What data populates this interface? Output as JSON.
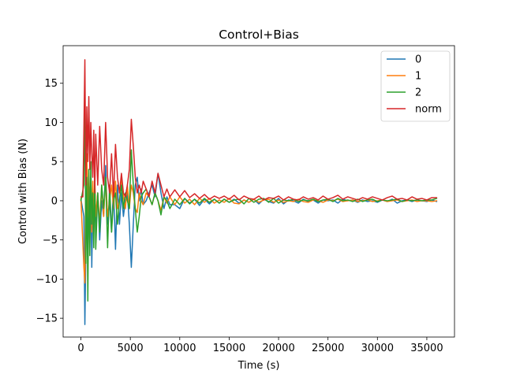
{
  "chart_data": {
    "type": "line",
    "title": "Control+Bias",
    "xlabel": "Time (s)",
    "ylabel": "Control with Bias (N)",
    "xlim": [
      -1800,
      37800
    ],
    "ylim": [
      -17.4,
      19.8
    ],
    "xticks": [
      0,
      5000,
      10000,
      15000,
      20000,
      25000,
      30000,
      35000
    ],
    "xtick_labels": [
      "0",
      "5000",
      "10000",
      "15000",
      "20000",
      "25000",
      "30000",
      "35000"
    ],
    "yticks": [
      -15,
      -10,
      -5,
      0,
      5,
      10,
      15
    ],
    "ytick_labels": [
      "−15",
      "−10",
      "−5",
      "0",
      "5",
      "10",
      "15"
    ],
    "grid": false,
    "legend_position": "top-right",
    "series": [
      {
        "name": "0",
        "color": "#1f77b4",
        "x": [
          0,
          300,
          400,
          500,
          600,
          700,
          800,
          900,
          1000,
          1100,
          1200,
          1300,
          1400,
          1500,
          1700,
          1900,
          2100,
          2300,
          2500,
          2700,
          2900,
          3100,
          3300,
          3500,
          3700,
          3900,
          4100,
          4300,
          4500,
          4700,
          4900,
          5100,
          5300,
          5500,
          5700,
          5900,
          6100,
          6300,
          6600,
          6900,
          7200,
          7500,
          7800,
          8100,
          8400,
          8700,
          9000,
          9500,
          10000,
          10500,
          11000,
          11500,
          12000,
          12500,
          13000,
          13500,
          14000,
          14500,
          15000,
          15500,
          16000,
          16500,
          17000,
          17500,
          18000,
          18500,
          19000,
          19500,
          20000,
          20500,
          21000,
          21500,
          22000,
          22500,
          23000,
          23500,
          24000,
          24500,
          25000,
          25500,
          26000,
          26500,
          27000,
          27500,
          28000,
          28500,
          29000,
          29500,
          30000,
          30500,
          31000,
          31500,
          32000,
          32500,
          33000,
          33500,
          34000,
          34500,
          35000,
          35500,
          36000
        ],
        "values": [
          0.2,
          -2,
          -15.8,
          -6,
          2,
          -8,
          1,
          -6,
          3,
          -8.5,
          0,
          -4,
          2,
          -3,
          1,
          -5,
          0,
          -2,
          4.5,
          -3,
          0,
          -4,
          2,
          -6.2,
          2,
          -3,
          1,
          -2,
          0,
          1,
          -3,
          -8.5,
          -3,
          2,
          3,
          0,
          1.5,
          -0.5,
          0,
          1,
          2,
          0.5,
          3.5,
          1,
          -1,
          0.5,
          -0.5,
          -0.5,
          -1,
          0.3,
          -0.3,
          0.2,
          -0.6,
          0.2,
          -0.4,
          0.2,
          -0.3,
          0.2,
          -0.2,
          0.2,
          -0.3,
          0.1,
          -0.2,
          0.2,
          -0.4,
          0.2,
          -0.1,
          -0.3,
          0.3,
          -0.4,
          0.1,
          0,
          -0.3,
          0.2,
          -0.1,
          0.1,
          -0.3,
          0.1,
          0,
          0.1,
          -0.3,
          0.2,
          0,
          0.1,
          -0.2,
          0.1,
          -0.1,
          0,
          -0.2,
          0.1,
          -0.1,
          0.2,
          -0.3,
          0,
          0.1,
          -0.1,
          0.1,
          0,
          -0.1,
          0.1,
          -0.1
        ]
      },
      {
        "name": "1",
        "color": "#ff7f0e",
        "x": [
          0,
          300,
          400,
          500,
          600,
          700,
          800,
          900,
          1000,
          1100,
          1200,
          1300,
          1400,
          1500,
          1700,
          1900,
          2100,
          2300,
          2500,
          2700,
          2900,
          3100,
          3300,
          3500,
          3700,
          3900,
          4100,
          4300,
          4500,
          4700,
          4900,
          5100,
          5300,
          5500,
          5700,
          5900,
          6100,
          6300,
          6600,
          6900,
          7200,
          7500,
          7800,
          8100,
          8400,
          8700,
          9000,
          9500,
          10000,
          10500,
          11000,
          11500,
          12000,
          12500,
          13000,
          13500,
          14000,
          14500,
          15000,
          15500,
          16000,
          16500,
          17000,
          17500,
          18000,
          18500,
          19000,
          19500,
          20000,
          20500,
          21000,
          21500,
          22000,
          22500,
          23000,
          23500,
          24000,
          24500,
          25000,
          25500,
          26000,
          26500,
          27000,
          27500,
          28000,
          28500,
          29000,
          29500,
          30000,
          30500,
          31000,
          31500,
          32000,
          32500,
          33000,
          33500,
          34000,
          34500,
          35000,
          35500,
          36000
        ],
        "values": [
          0.3,
          -8.5,
          -10.5,
          3,
          6,
          -2,
          4,
          -1,
          3,
          -4,
          2.5,
          -2,
          3,
          -2,
          1,
          -3,
          2,
          -2,
          3,
          -2,
          0,
          2,
          -1,
          2.5,
          -1,
          0,
          3,
          0.5,
          -1,
          2,
          -1,
          2,
          1,
          -1,
          -1.5,
          1,
          0,
          -0.5,
          1,
          0.5,
          -0.5,
          1,
          0,
          -1.2,
          0.5,
          -0.3,
          0.5,
          -0.5,
          0.5,
          -0.3,
          0.2,
          -0.5,
          0.3,
          -0.2,
          0.3,
          -0.3,
          0.1,
          -0.2,
          0.3,
          -0.3,
          -0.4,
          0.1,
          -0.2,
          0.2,
          -0.2,
          0.1,
          0.2,
          -0.2,
          0.1,
          -0.2,
          0,
          -0.1,
          0.2,
          -0.1,
          -0.2,
          0.1,
          0,
          -0.2,
          0.1,
          0,
          0.2,
          -0.1,
          0,
          0.1,
          -0.1,
          0,
          0.1,
          -0.1,
          0,
          0.1,
          -0.1,
          0,
          0.1,
          -0.1,
          0,
          0.1,
          -0.1,
          0,
          0,
          -0.1,
          0
        ]
      },
      {
        "name": "2",
        "color": "#2ca02c",
        "x": [
          0,
          300,
          400,
          500,
          600,
          700,
          800,
          900,
          1000,
          1100,
          1200,
          1300,
          1400,
          1500,
          1700,
          1900,
          2100,
          2300,
          2500,
          2700,
          2900,
          3100,
          3300,
          3500,
          3700,
          3900,
          4100,
          4300,
          4500,
          4700,
          4900,
          5100,
          5300,
          5500,
          5700,
          5900,
          6100,
          6300,
          6600,
          6900,
          7200,
          7500,
          7800,
          8100,
          8400,
          8700,
          9000,
          9500,
          10000,
          10500,
          11000,
          11500,
          12000,
          12500,
          13000,
          13500,
          14000,
          14500,
          15000,
          15500,
          16000,
          16500,
          17000,
          17500,
          18000,
          18500,
          19000,
          19500,
          20000,
          20500,
          21000,
          21500,
          22000,
          22500,
          23000,
          23500,
          24000,
          24500,
          25000,
          25500,
          26000,
          26500,
          27000,
          27500,
          28000,
          28500,
          29000,
          29500,
          30000,
          30500,
          31000,
          31500,
          32000,
          32500,
          33000,
          33500,
          34000,
          34500,
          35000,
          35500,
          36000
        ],
        "values": [
          0,
          2,
          15,
          -8,
          3,
          -12.8,
          4,
          -7,
          5,
          -3,
          1,
          -6,
          3,
          -6.2,
          1,
          -4,
          2,
          -1,
          3,
          -6,
          2,
          -4,
          0,
          1,
          -3,
          0,
          2,
          -1,
          1,
          0,
          -1,
          6.5,
          2,
          -1,
          -4,
          -2,
          0.5,
          1,
          1.5,
          0.5,
          -0.5,
          1,
          0,
          -1.8,
          0.5,
          0,
          -1,
          0.2,
          -0.5,
          0.3,
          -0.4,
          0.2,
          -0.3,
          0.3,
          -0.2,
          0.2,
          -0.3,
          0.2,
          -0.2,
          0.1,
          0.2,
          -0.4,
          0.3,
          -0.2,
          0.2,
          0.3,
          -0.2,
          0.3,
          -0.3,
          0.1,
          0,
          0.2,
          -0.1,
          0.1,
          0,
          0.2,
          -0.1,
          0.1,
          0.2,
          -0.1,
          0.3,
          0,
          0.1,
          -0.1,
          0.2,
          -0.1,
          0.1,
          0.2,
          -0.1,
          0.1,
          0,
          0.1,
          0.2,
          -0.1,
          0.1,
          0,
          0.1,
          0,
          0.1,
          0.1,
          0.3
        ]
      },
      {
        "name": "norm",
        "color": "#d62728",
        "x": [
          0,
          200,
          300,
          400,
          500,
          600,
          700,
          800,
          900,
          1000,
          1100,
          1200,
          1300,
          1400,
          1500,
          1700,
          1900,
          2100,
          2300,
          2500,
          2700,
          2900,
          3100,
          3300,
          3500,
          3700,
          3900,
          4100,
          4300,
          4500,
          4700,
          4900,
          5100,
          5300,
          5500,
          5700,
          5900,
          6100,
          6300,
          6600,
          6900,
          7200,
          7500,
          7800,
          8100,
          8400,
          8700,
          9000,
          9500,
          10000,
          10500,
          11000,
          11500,
          12000,
          12500,
          13000,
          13500,
          14000,
          14500,
          15000,
          15500,
          16000,
          16500,
          17000,
          17500,
          18000,
          18500,
          19000,
          19500,
          20000,
          20500,
          21000,
          21500,
          22000,
          22500,
          23000,
          23500,
          24000,
          24500,
          25000,
          25500,
          26000,
          26500,
          27000,
          27500,
          28000,
          28500,
          29000,
          29500,
          30000,
          30500,
          31000,
          31500,
          32000,
          32500,
          33000,
          33500,
          34000,
          34500,
          35000,
          35500,
          36000
        ],
        "values": [
          0.5,
          0.5,
          9,
          18,
          2,
          12,
          5,
          13.3,
          4,
          10,
          6,
          3,
          9,
          1,
          8.5,
          2,
          9.5,
          4,
          2,
          10,
          3,
          1,
          6,
          0.5,
          7.2,
          3,
          1,
          3.5,
          1,
          0.5,
          2,
          4,
          10.4,
          7,
          3,
          1,
          2,
          1,
          2.5,
          1.5,
          0.5,
          2.5,
          1,
          3.5,
          2,
          0.5,
          1.5,
          0.5,
          1.4,
          0.5,
          1.3,
          0.4,
          0.9,
          0.3,
          0.8,
          0.2,
          0.6,
          0.3,
          0.6,
          0.2,
          0.7,
          0.1,
          0.6,
          0.3,
          0.2,
          0.6,
          0.1,
          0.4,
          0.3,
          0.6,
          0.1,
          0.5,
          0.2,
          0.1,
          0.5,
          0.2,
          0.4,
          0.1,
          0.6,
          0.2,
          0.4,
          0.7,
          0.2,
          0.5,
          0.3,
          0.1,
          0.4,
          0.2,
          0.5,
          0.3,
          0.1,
          0.4,
          0.6,
          0.2,
          0.3,
          0.1,
          0.5,
          0.2,
          0.3,
          0.1,
          0.4,
          0.4
        ]
      }
    ]
  }
}
